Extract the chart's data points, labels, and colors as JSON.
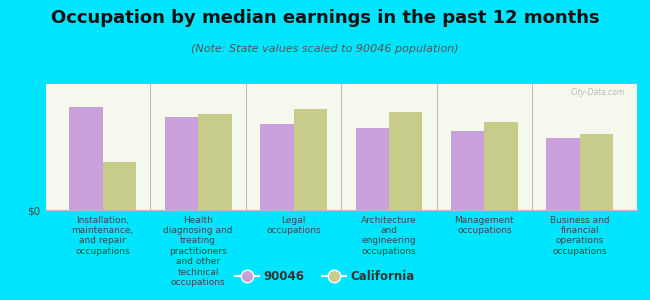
{
  "title": "Occupation by median earnings in the past 12 months",
  "subtitle": "(Note: State values scaled to 90046 population)",
  "categories": [
    "Installation,\nmaintenance,\nand repair\noccupations",
    "Health\ndiagnosing and\ntreating\npractitioners\nand other\ntechnical\noccupations",
    "Legal\noccupations",
    "Architecture\nand\nengineering\noccupations",
    "Management\noccupations",
    "Business and\nfinancial\noperations\noccupations"
  ],
  "values_90046": [
    0.82,
    0.74,
    0.68,
    0.65,
    0.63,
    0.57
  ],
  "values_california": [
    0.38,
    0.76,
    0.8,
    0.78,
    0.7,
    0.6
  ],
  "color_90046": "#c9a0dc",
  "color_california": "#c8cc8a",
  "background_color": "#00e5ff",
  "plot_bg_gradient_top": "#e8f0d0",
  "plot_bg_gradient_bottom": "#f5f8ec",
  "bar_width": 0.35,
  "ylabel": "$0",
  "legend_labels": [
    "90046",
    "California"
  ],
  "watermark": "City-Data.com",
  "title_fontsize": 13,
  "subtitle_fontsize": 8,
  "tick_fontsize": 6.5,
  "ylim": [
    0,
    1.0
  ],
  "separator_color": "#bbbbbb",
  "spine_color": "#bbbbbb"
}
